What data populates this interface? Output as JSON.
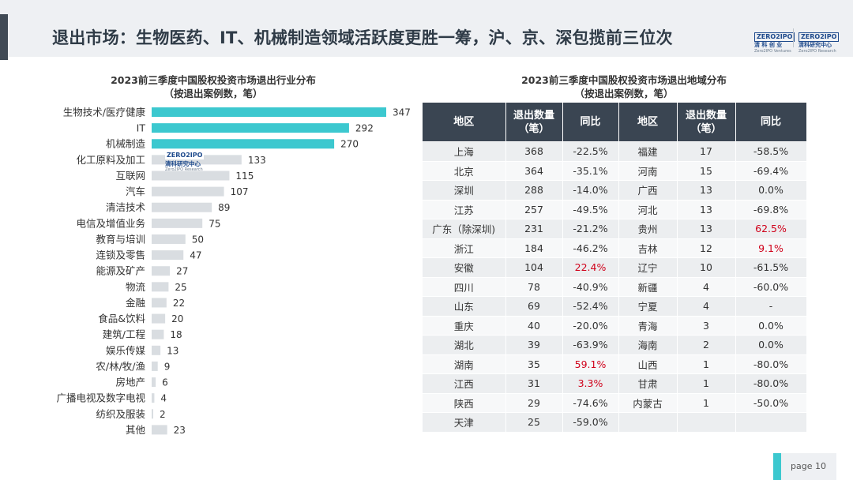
{
  "page": {
    "title": "退出市场：生物医药、IT、机械制造领域活跃度更胜一筹，沪、京、深包揽前三位次",
    "page_label": "page  10",
    "logo_zero_ipo_1": {
      "brand": "ZERO2IPO",
      "cn": "清 科 创 业",
      "en": "Zero2IPO Ventures"
    },
    "logo_zero_ipo_2": {
      "brand": "ZERO2IPO",
      "cn": "清科研究中心",
      "en": "Zero2IPO Research"
    },
    "watermark": {
      "brand": "ZERO2IPO",
      "cn": "清科研究中心",
      "en": "Zero2IPO Research"
    },
    "colors": {
      "accent": "#3cc8cf",
      "bar_top": "#3cc8cf",
      "bar_rest": "#d9dde1",
      "table_header": "#3a4552",
      "positive": "#d0021b"
    }
  },
  "chart_data": [
    {
      "type": "bar",
      "orientation": "horizontal",
      "title": "2023前三季度中国股权投资市场退出行业分布",
      "subtitle": "（按退出案例数，笔）",
      "categories": [
        "生物技术/医疗健康",
        "IT",
        "机械制造",
        "化工原料及加工",
        "互联网",
        "汽车",
        "清洁技术",
        "电信及增值业务",
        "教育与培训",
        "连锁及零售",
        "能源及矿产",
        "物流",
        "金融",
        "食品&饮料",
        "建筑/工程",
        "娱乐传媒",
        "农/林/牧/渔",
        "房地产",
        "广播电视及数字电视",
        "纺织及服装",
        "其他"
      ],
      "values": [
        347,
        292,
        270,
        133,
        115,
        107,
        89,
        75,
        50,
        47,
        27,
        25,
        22,
        20,
        18,
        13,
        9,
        6,
        4,
        2,
        23
      ],
      "highlight_top": 3
    },
    {
      "type": "table",
      "title": "2023前三季度中国股权投资市场退出地域分布",
      "subtitle": "（按退出案例数，笔）",
      "columns": [
        "地区",
        "退出数量（笔）",
        "同比",
        "地区",
        "退出数量（笔）",
        "同比"
      ],
      "header_display": [
        "地区",
        "退出数量\n（笔）",
        "同比",
        "地区",
        "退出数量\n（笔）",
        "同比"
      ],
      "rows": [
        [
          "上海",
          "368",
          "-22.5%",
          "福建",
          "17",
          "-58.5%"
        ],
        [
          "北京",
          "364",
          "-35.1%",
          "河南",
          "15",
          "-69.4%"
        ],
        [
          "深圳",
          "288",
          "-14.0%",
          "广西",
          "13",
          "0.0%"
        ],
        [
          "江苏",
          "257",
          "-49.5%",
          "河北",
          "13",
          "-69.8%"
        ],
        [
          "广东（除深圳)",
          "231",
          "-21.2%",
          "贵州",
          "13",
          "62.5%"
        ],
        [
          "浙江",
          "184",
          "-46.2%",
          "吉林",
          "12",
          "9.1%"
        ],
        [
          "安徽",
          "104",
          "22.4%",
          "辽宁",
          "10",
          "-61.5%"
        ],
        [
          "四川",
          "78",
          "-40.9%",
          "新疆",
          "4",
          "-60.0%"
        ],
        [
          "山东",
          "69",
          "-52.4%",
          "宁夏",
          "4",
          "-"
        ],
        [
          "重庆",
          "40",
          "-20.0%",
          "青海",
          "3",
          "0.0%"
        ],
        [
          "湖北",
          "39",
          "-63.9%",
          "海南",
          "2",
          "0.0%"
        ],
        [
          "湖南",
          "35",
          "59.1%",
          "山西",
          "1",
          "-80.0%"
        ],
        [
          "江西",
          "31",
          "3.3%",
          "甘肃",
          "1",
          "-80.0%"
        ],
        [
          "陕西",
          "29",
          "-74.6%",
          "内蒙古",
          "1",
          "-50.0%"
        ],
        [
          "天津",
          "25",
          "-59.0%",
          "",
          "",
          ""
        ]
      ],
      "red_cells": [
        [
          4,
          5
        ],
        [
          5,
          5
        ],
        [
          6,
          2
        ],
        [
          11,
          2
        ],
        [
          12,
          2
        ]
      ]
    }
  ]
}
